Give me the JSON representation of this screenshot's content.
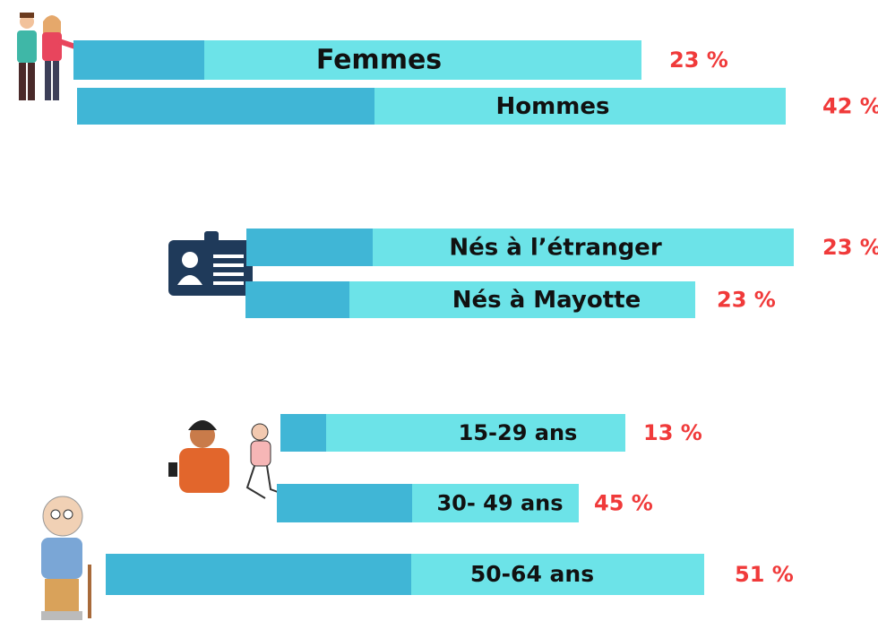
{
  "groups": [
    {
      "items": [
        {
          "label": "Femmes",
          "value_label": "23 %"
        },
        {
          "label": "Hommes",
          "value_label": "42 %"
        }
      ]
    },
    {
      "items": [
        {
          "label": "Nés à l’étranger",
          "value_label": "23 %"
        },
        {
          "label": "Nés à Mayotte",
          "value_label": "23 %"
        }
      ]
    },
    {
      "items": [
        {
          "label": "15-29 ans",
          "value_label": "13 %"
        },
        {
          "label": "30- 49 ans",
          "value_label": "45 %"
        },
        {
          "label": "50-64 ans",
          "value_label": "51 %"
        }
      ]
    }
  ]
}
